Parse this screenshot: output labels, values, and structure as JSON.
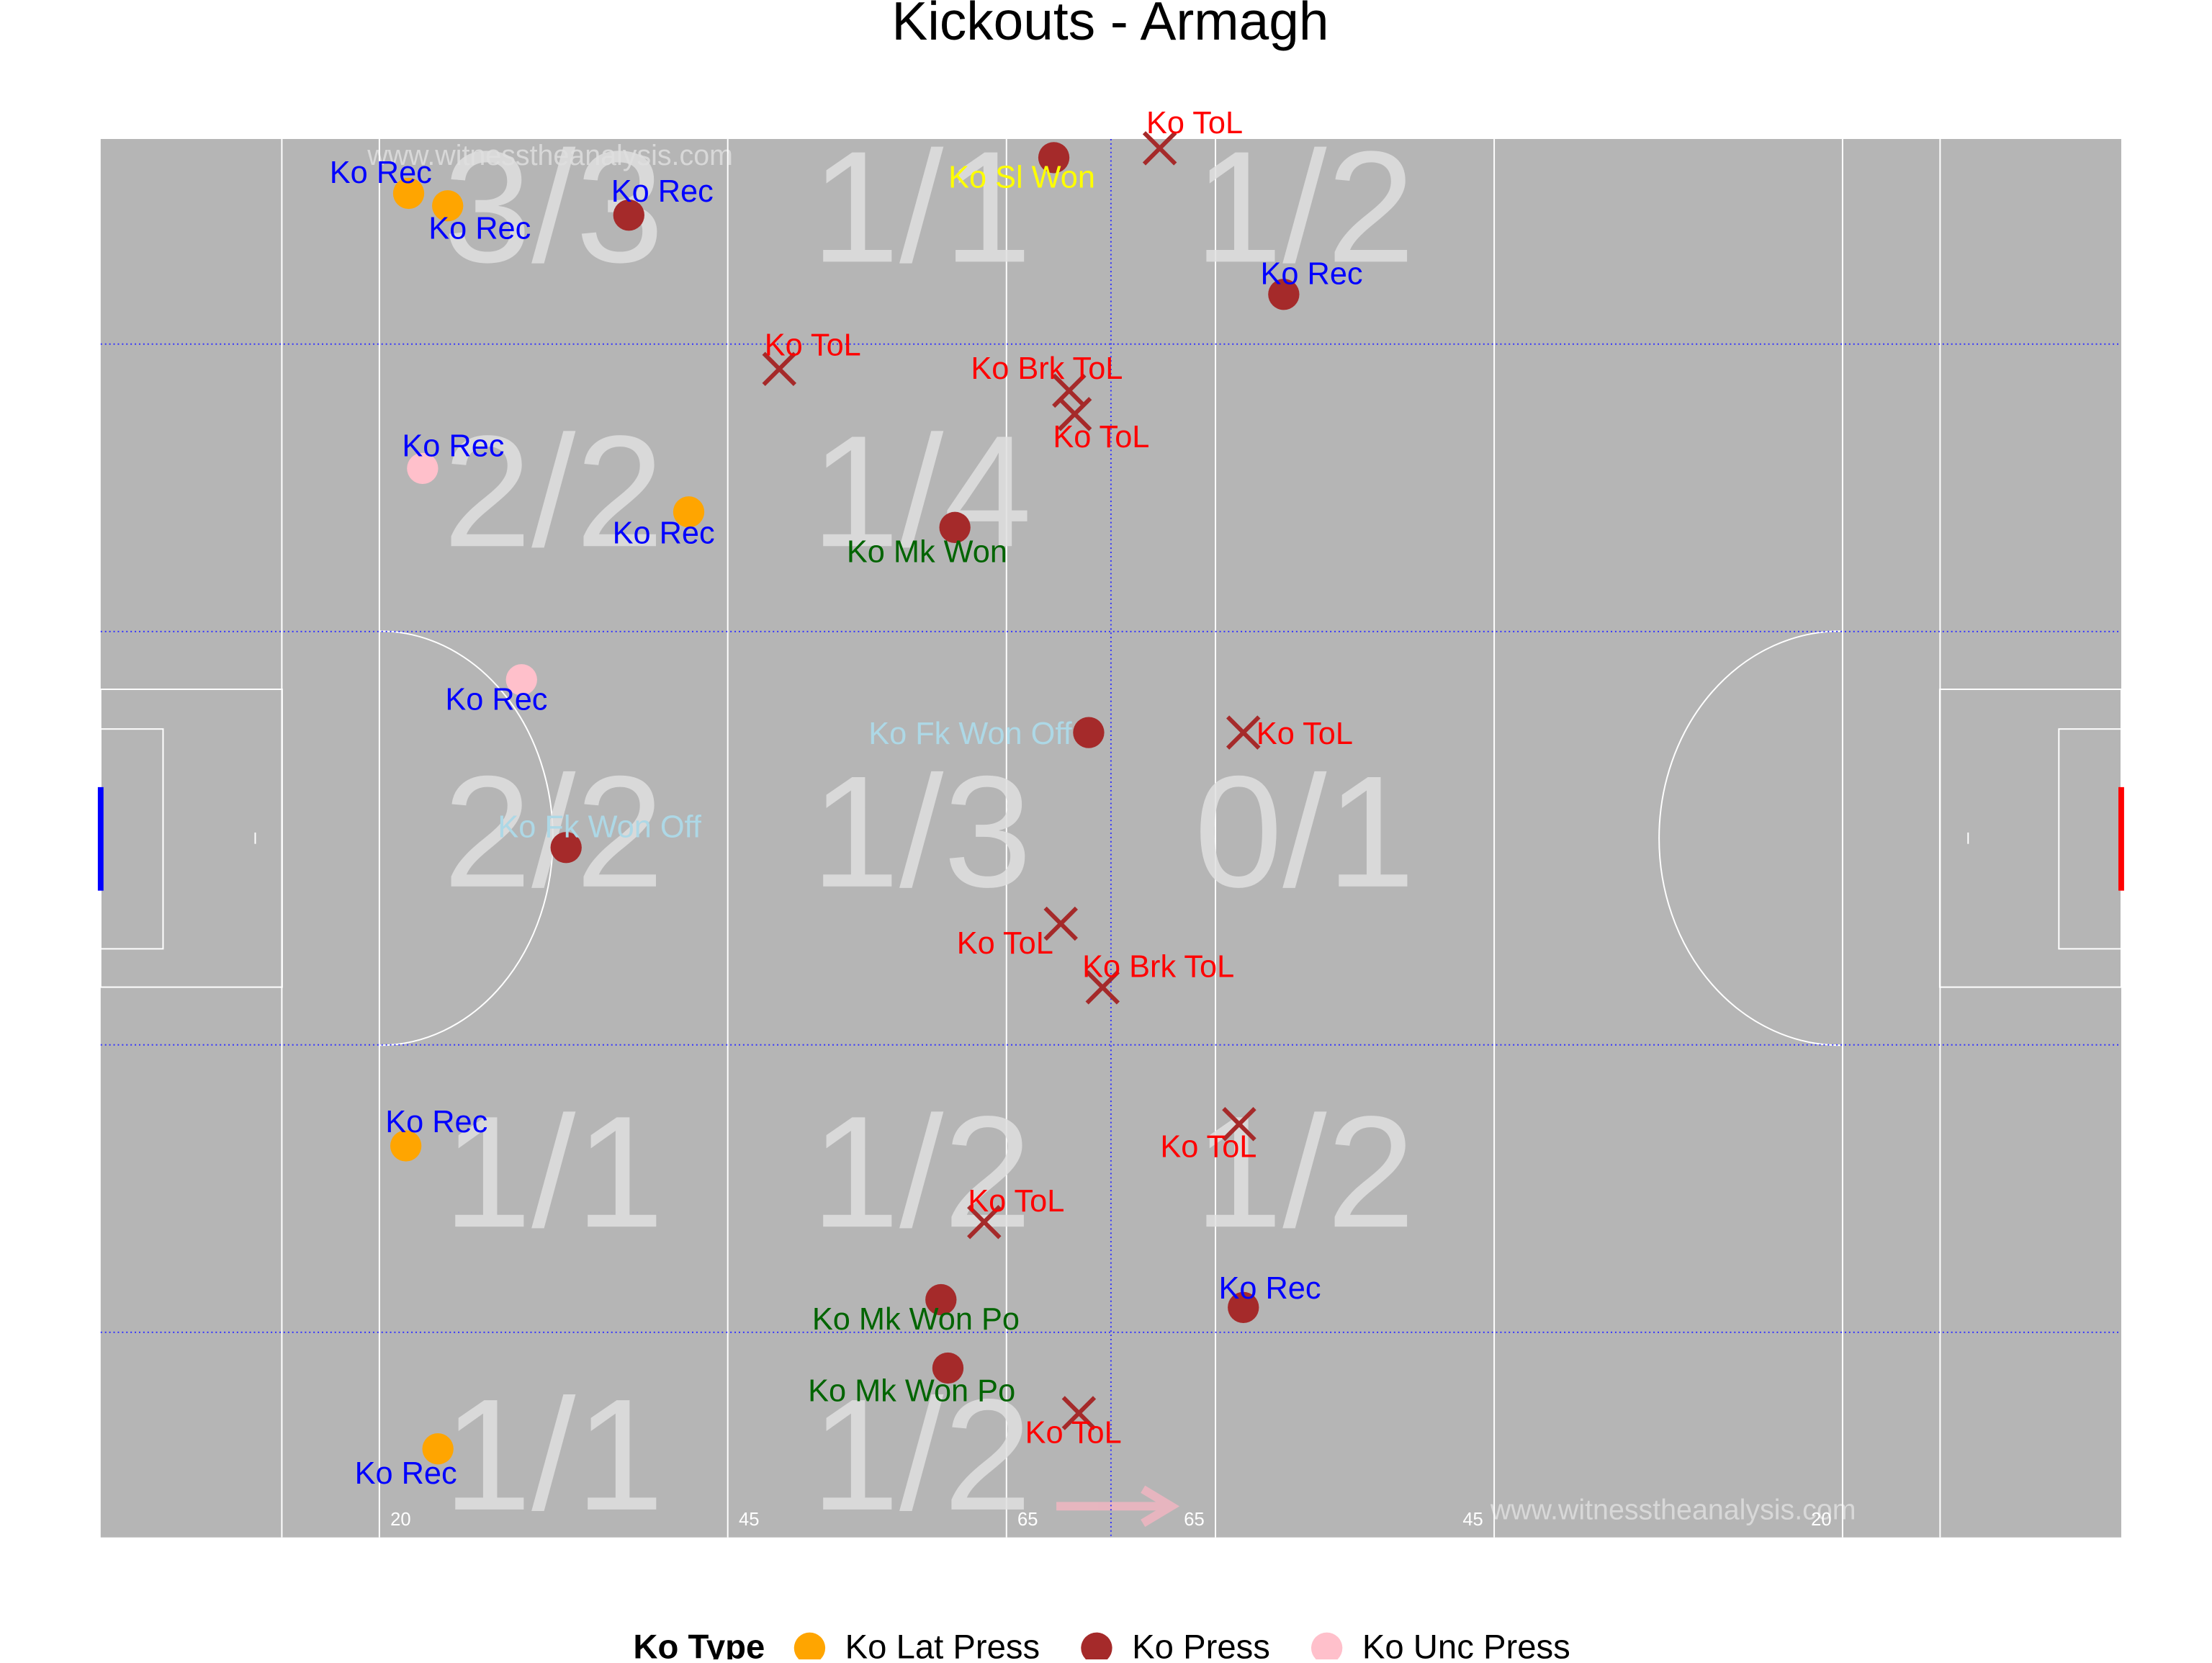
{
  "chart_data": {
    "type": "pitch-scatter",
    "title": "Kickouts - Armagh",
    "watermark": "www.witnesstheanalysis.com",
    "xlim": [
      0,
      145
    ],
    "ylim": [
      0,
      90
    ],
    "xticks": [
      20,
      45,
      65,
      {
        "value": 80,
        "label": "65"
      },
      {
        "value": 100,
        "label": "45"
      },
      {
        "value": 125,
        "label": "20"
      }
    ],
    "xgrid": [
      72.5
    ],
    "ygrid": [
      13.2,
      31.7,
      58.3,
      76.8
    ],
    "legend_title": "Ko Type",
    "types": [
      {
        "name": "Ko Lat Press",
        "color": "#FFA500"
      },
      {
        "name": "Ko Press",
        "color": "#A52A2A"
      },
      {
        "name": "Ko Unc Press",
        "color": "#FFC0CB"
      }
    ],
    "label_colors": {
      "Ko Rec": "#0000FF",
      "Ko ToL": "#FF0000",
      "Ko Brk ToL": "#FF0000",
      "Ko Mk Won": "#006400",
      "Ko Mk Won Po": "#006400",
      "Ko Fk Won Off": "#ADD8E6",
      "Ko Sl Won": "#FFFF00"
    },
    "shapes": {
      "Ko ToL": "x",
      "Ko Brk ToL": "x"
    },
    "zones": [
      {
        "text": "3/3",
        "x": 32.5,
        "y": 84.8
      },
      {
        "text": "1/1",
        "x": 58.9,
        "y": 84.8
      },
      {
        "text": "1/2",
        "x": 86.4,
        "y": 84.8
      },
      {
        "text": "2/2",
        "x": 32.5,
        "y": 66.5
      },
      {
        "text": "1/4",
        "x": 58.9,
        "y": 66.5
      },
      {
        "text": "2/2",
        "x": 32.5,
        "y": 44.6
      },
      {
        "text": "1/3",
        "x": 58.9,
        "y": 44.6
      },
      {
        "text": "0/1",
        "x": 86.4,
        "y": 44.6
      },
      {
        "text": "1/1",
        "x": 32.5,
        "y": 22.7
      },
      {
        "text": "1/2",
        "x": 58.9,
        "y": 22.7
      },
      {
        "text": "1/2",
        "x": 86.4,
        "y": 22.7
      },
      {
        "text": "1/1",
        "x": 32.5,
        "y": 4.5
      },
      {
        "text": "1/2",
        "x": 58.9,
        "y": 4.5
      }
    ],
    "points": [
      {
        "x": 22.1,
        "y": 86.5,
        "type": "Ko Lat Press",
        "label": "Ko Rec",
        "label_x": 20.1,
        "label_y": 87.7
      },
      {
        "x": 24.9,
        "y": 85.7,
        "type": "Ko Lat Press",
        "label": "Ko Rec",
        "label_x": 27.2,
        "label_y": 84.1
      },
      {
        "x": 37.9,
        "y": 85.1,
        "type": "Ko Press",
        "label": "Ko Rec",
        "label_x": 40.3,
        "label_y": 86.5
      },
      {
        "x": 68.4,
        "y": 88.8,
        "type": "Ko Press",
        "label": "Ko Sl Won",
        "label_x": 66.1,
        "label_y": 87.4
      },
      {
        "x": 76.0,
        "y": 89.4,
        "type": "Ko Press",
        "label": "Ko ToL",
        "label_x": 78.5,
        "label_y": 90.9
      },
      {
        "x": 84.9,
        "y": 80.0,
        "type": "Ko Press",
        "label": "Ko Rec",
        "label_x": 86.9,
        "label_y": 81.2
      },
      {
        "x": 48.7,
        "y": 75.2,
        "type": "Ko Press",
        "label": "Ko ToL",
        "label_x": 51.1,
        "label_y": 76.6
      },
      {
        "x": 69.5,
        "y": 73.8,
        "type": "Ko Press",
        "label": "Ko Brk ToL",
        "label_x": 67.9,
        "label_y": 75.1
      },
      {
        "x": 69.9,
        "y": 72.3,
        "type": "Ko Press",
        "label": "Ko ToL",
        "label_x": 71.8,
        "label_y": 70.7
      },
      {
        "x": 23.1,
        "y": 68.8,
        "type": "Ko Unc Press",
        "label": "Ko Rec",
        "label_x": 25.3,
        "label_y": 70.1
      },
      {
        "x": 42.2,
        "y": 66.0,
        "type": "Ko Lat Press",
        "label": "Ko Rec",
        "label_x": 40.4,
        "label_y": 64.5
      },
      {
        "x": 61.3,
        "y": 65.0,
        "type": "Ko Press",
        "label": "Ko Mk Won",
        "label_x": 59.3,
        "label_y": 63.3
      },
      {
        "x": 30.2,
        "y": 55.2,
        "type": "Ko Unc Press",
        "label": "Ko Rec",
        "label_x": 28.4,
        "label_y": 53.8
      },
      {
        "x": 70.9,
        "y": 51.8,
        "type": "Ko Press",
        "label": "Ko Fk Won Off",
        "label_x": 62.4,
        "label_y": 51.6
      },
      {
        "x": 82.0,
        "y": 51.8,
        "type": "Ko Press",
        "label": "Ko ToL",
        "label_x": 86.4,
        "label_y": 51.6
      },
      {
        "x": 33.4,
        "y": 44.4,
        "type": "Ko Press",
        "label": "Ko Fk Won Off",
        "label_x": 35.8,
        "label_y": 45.6
      },
      {
        "x": 68.9,
        "y": 39.5,
        "type": "Ko Press",
        "label": "Ko ToL",
        "label_x": 64.9,
        "label_y": 38.1
      },
      {
        "x": 71.9,
        "y": 35.4,
        "type": "Ko Press",
        "label": "Ko Brk ToL",
        "label_x": 75.9,
        "label_y": 36.6
      },
      {
        "x": 21.9,
        "y": 25.2,
        "type": "Ko Lat Press",
        "label": "Ko Rec",
        "label_x": 24.1,
        "label_y": 26.6
      },
      {
        "x": 81.7,
        "y": 26.6,
        "type": "Ko Press",
        "label": "Ko ToL",
        "label_x": 79.5,
        "label_y": 25.0
      },
      {
        "x": 63.4,
        "y": 20.3,
        "type": "Ko Press",
        "label": "Ko ToL",
        "label_x": 65.7,
        "label_y": 21.5
      },
      {
        "x": 60.3,
        "y": 15.3,
        "type": "Ko Press",
        "label": "Ko Mk Won Po",
        "label_x": 58.5,
        "label_y": 13.9
      },
      {
        "x": 82.0,
        "y": 14.8,
        "type": "Ko Press",
        "label": "Ko Rec",
        "label_x": 83.9,
        "label_y": 15.9
      },
      {
        "x": 60.8,
        "y": 10.9,
        "type": "Ko Press",
        "label": "Ko Mk Won Po",
        "label_x": 58.2,
        "label_y": 9.3
      },
      {
        "x": 70.2,
        "y": 8.0,
        "type": "Ko Press",
        "label": "Ko ToL",
        "label_x": 69.8,
        "label_y": 6.6
      },
      {
        "x": 24.2,
        "y": 5.7,
        "type": "Ko Lat Press",
        "label": "Ko Rec",
        "label_x": 21.9,
        "label_y": 4.0
      }
    ]
  }
}
